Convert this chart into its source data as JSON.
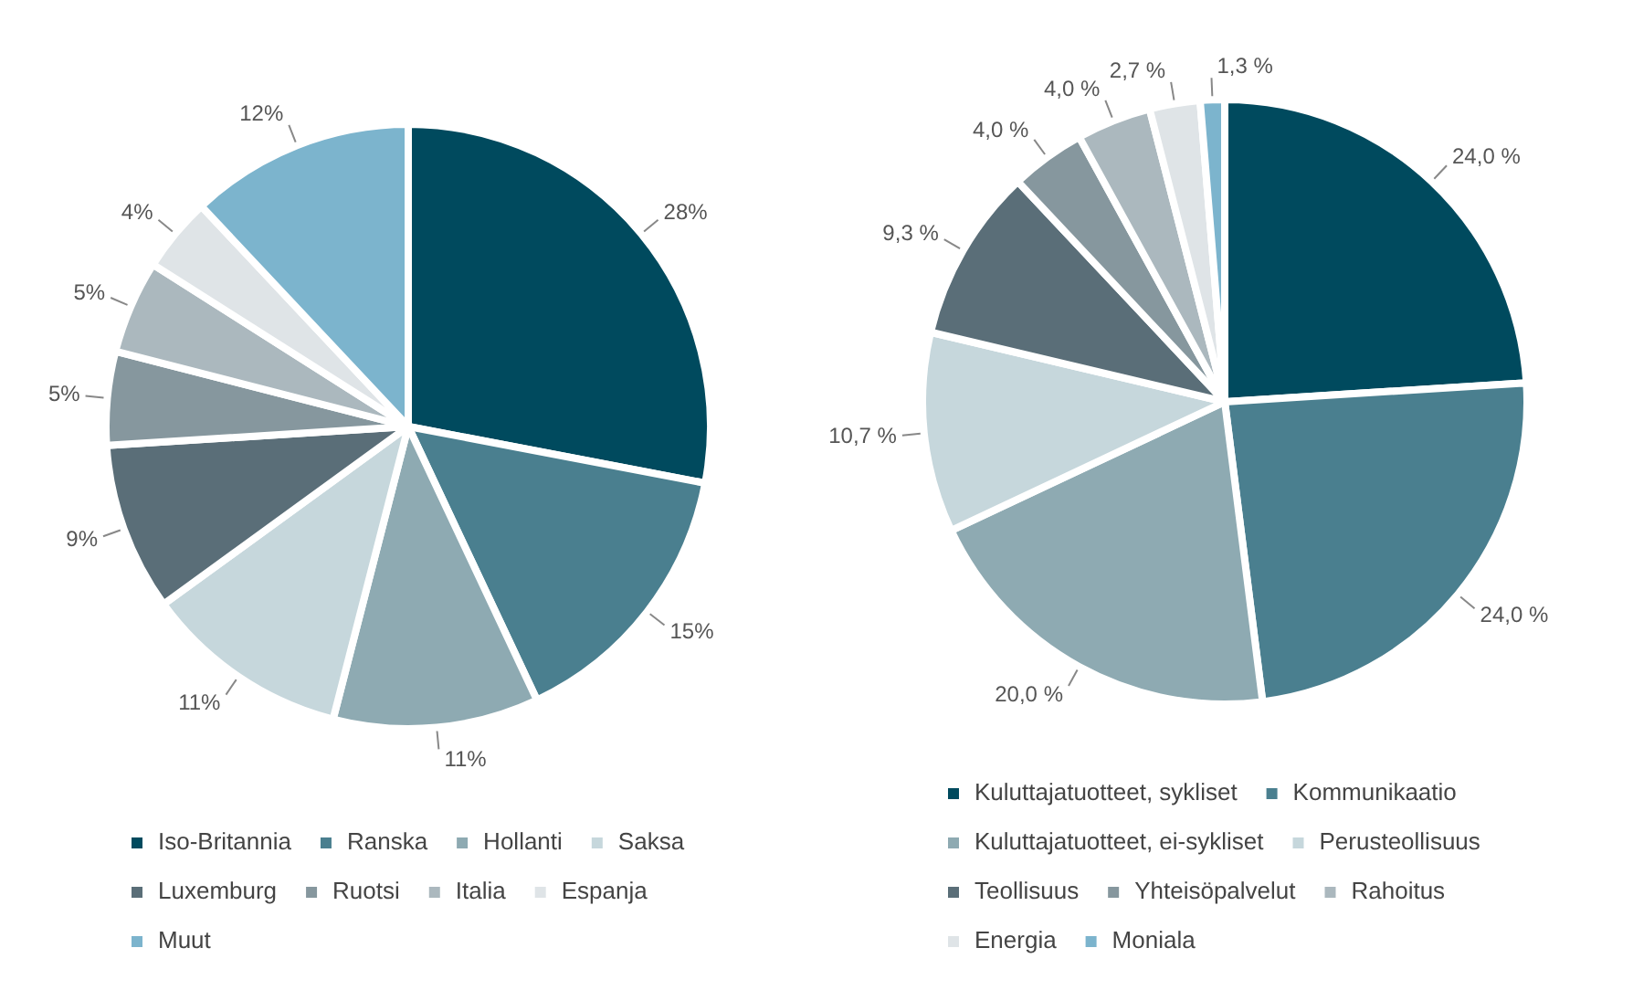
{
  "chart_data": [
    {
      "type": "pie",
      "categories": [
        "Iso-Britannia",
        "Ranska",
        "Hollanti",
        "Saksa",
        "Luxemburg",
        "Ruotsi",
        "Italia",
        "Espanja",
        "Muut"
      ],
      "values": [
        28,
        15,
        11,
        11,
        9,
        5,
        5,
        4,
        12
      ],
      "value_labels": [
        "28%",
        "15%",
        "11%",
        "11%",
        "9%",
        "5%",
        "5%",
        "4%",
        "12%"
      ],
      "colors": [
        "#004a5e",
        "#4a7f8f",
        "#8eaab2",
        "#c6d7dc",
        "#5a6e78",
        "#86979e",
        "#abb8be",
        "#dfe4e7",
        "#7cb4cd"
      ],
      "legend": "bottom"
    },
    {
      "type": "pie",
      "categories": [
        "Kuluttajatuotteet, sykliset",
        "Kommunikaatio",
        "Kuluttajatuotteet, ei-sykliset",
        "Perusteollisuus",
        "Teollisuus",
        "Yhteisöpalvelut",
        "Rahoitus",
        "Energia",
        "Moniala"
      ],
      "values": [
        24.0,
        24.0,
        20.0,
        10.7,
        9.3,
        4.0,
        4.0,
        2.7,
        1.3
      ],
      "value_labels": [
        "24,0 %",
        "24,0 %",
        "20,0 %",
        "10,7 %",
        "9,3 %",
        "4,0 %",
        "4,0 %",
        "2,7 %",
        "1,3 %"
      ],
      "colors": [
        "#004a5e",
        "#4a7f8f",
        "#8eaab2",
        "#c6d7dc",
        "#5a6e78",
        "#86979e",
        "#abb8be",
        "#dfe4e7",
        "#7cb4cd"
      ],
      "legend": "bottom"
    }
  ]
}
